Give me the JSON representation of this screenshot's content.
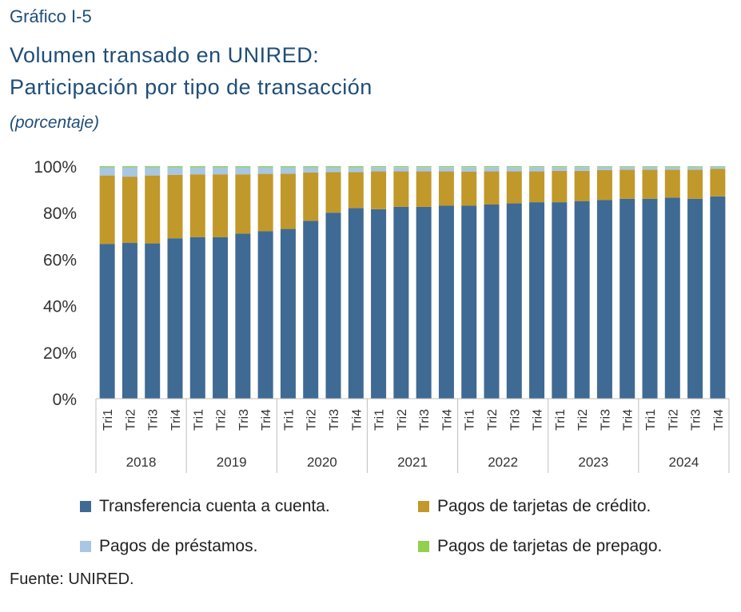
{
  "figure_label": "Gráfico I-5",
  "title_line1": "Volumen transado en UNIRED:",
  "title_line2": "Participación por tipo de transacción",
  "subtitle": "(porcentaje)",
  "source": "Fuente: UNIRED.",
  "chart_data": {
    "type": "bar",
    "stacked": true,
    "categories": [
      "Tri1",
      "Tri2",
      "Tri3",
      "Tri4",
      "Tri1",
      "Tri2",
      "Tri3",
      "Tri4",
      "Tri1",
      "Tri2",
      "Tri3",
      "Tri4",
      "Tri1",
      "Tri2",
      "Tri3",
      "Tri4",
      "Tri1",
      "Tri2",
      "Tri3",
      "Tri4",
      "Tri1",
      "Tri2",
      "Tri3",
      "Tri4",
      "Tri1",
      "Tri2",
      "Tri3",
      "Tri4"
    ],
    "groups": [
      {
        "label": "2018",
        "size": 4
      },
      {
        "label": "2019",
        "size": 4
      },
      {
        "label": "2020",
        "size": 4
      },
      {
        "label": "2021",
        "size": 4
      },
      {
        "label": "2022",
        "size": 4
      },
      {
        "label": "2023",
        "size": 4
      },
      {
        "label": "2024",
        "size": 4
      }
    ],
    "series": [
      {
        "name": "Transferencia cuenta a cuenta.",
        "color": "#3f6a93",
        "values": [
          66.5,
          67,
          66.8,
          69,
          69.5,
          69.5,
          71,
          72,
          73,
          76.5,
          80,
          82,
          81.5,
          82.5,
          82.5,
          83,
          83,
          83.5,
          84,
          84.5,
          84.5,
          85,
          85.5,
          86,
          86,
          86.5,
          86,
          87
        ]
      },
      {
        "name": "Pagos de tarjetas de crédito.",
        "color": "#c1982a",
        "values": [
          29.5,
          28.5,
          29.2,
          27.3,
          27,
          27,
          25.5,
          24.7,
          23.8,
          20.8,
          17.5,
          15.5,
          16.3,
          15.3,
          15.3,
          14.8,
          14.7,
          14.3,
          13.8,
          13.3,
          13.5,
          13,
          12.8,
          12.5,
          12.5,
          12,
          12.5,
          11.8
        ]
      },
      {
        "name": "Pagos de préstamos.",
        "color": "#a7c7e3",
        "values": [
          3.5,
          4,
          3.5,
          3.2,
          3,
          3,
          3,
          2.8,
          2.7,
          2.2,
          2,
          2,
          1.8,
          1.8,
          1.8,
          1.8,
          1.9,
          1.8,
          1.8,
          1.8,
          1.6,
          1.6,
          1.4,
          1.2,
          1.2,
          1.2,
          1.2,
          0.9
        ]
      },
      {
        "name": "Pagos de tarjetas de prepago.",
        "color": "#92d050",
        "values": [
          0.5,
          0.5,
          0.5,
          0.5,
          0.5,
          0.5,
          0.5,
          0.5,
          0.5,
          0.5,
          0.5,
          0.5,
          0.4,
          0.4,
          0.4,
          0.4,
          0.4,
          0.4,
          0.4,
          0.4,
          0.4,
          0.4,
          0.3,
          0.3,
          0.3,
          0.3,
          0.3,
          0.3
        ]
      }
    ],
    "ylim": [
      0,
      100
    ],
    "y_ticks": [
      "0%",
      "20%",
      "40%",
      "60%",
      "80%",
      "100%"
    ],
    "y_tick_values": [
      0,
      20,
      40,
      60,
      80,
      100
    ],
    "grid": false,
    "legend_position": "bottom"
  }
}
